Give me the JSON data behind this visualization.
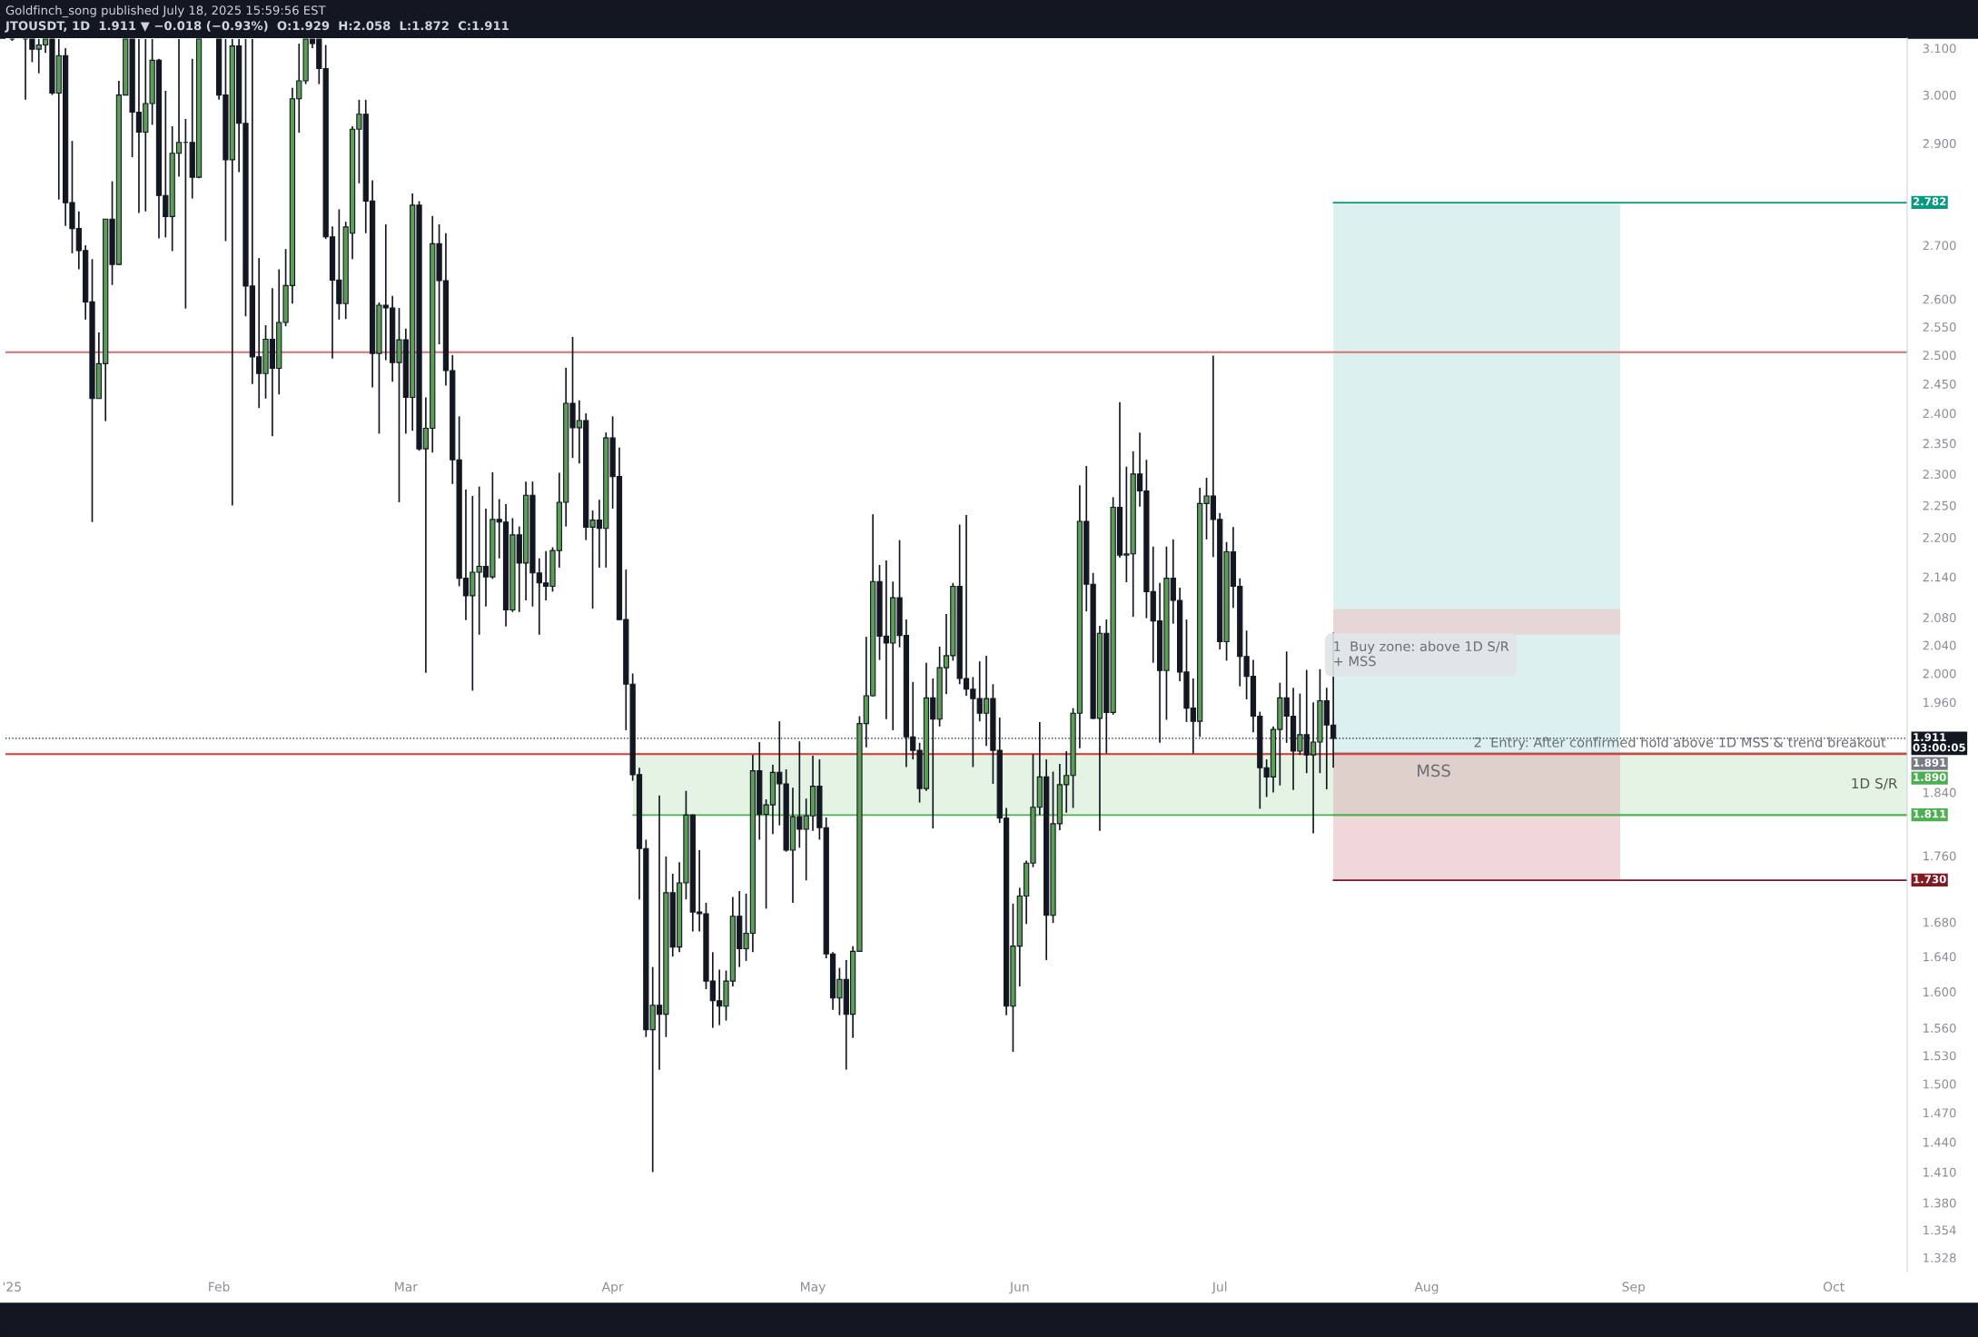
{
  "chart_data": {
    "type": "candlestick",
    "title": "JTOUSDT, 1D  1.911 ▼ −0.018 (−0.93%)  O:1.929  H:2.058  L:1.872  C:1.911",
    "subtitle": "Goldfinch_song published July 18, 2025 15:59:56 EST",
    "x": [
      "2025-01-01",
      "2025-01-03",
      "2025-01-04",
      "2025-01-05",
      "2025-01-06",
      "2025-01-07",
      "2025-01-08",
      "2025-01-09",
      "2025-01-10",
      "2025-01-11",
      "2025-01-12",
      "2025-01-13",
      "2025-01-14",
      "2025-01-15",
      "2025-01-16",
      "2025-01-17",
      "2025-01-18",
      "2025-01-19",
      "2025-01-20",
      "2025-01-21",
      "2025-01-22",
      "2025-01-23",
      "2025-01-24",
      "2025-01-25",
      "2025-01-26",
      "2025-01-27",
      "2025-01-28",
      "2025-01-29",
      "2025-02-01",
      "2025-02-02",
      "2025-02-03",
      "2025-02-04",
      "2025-02-05",
      "2025-02-06",
      "2025-02-07",
      "2025-02-08",
      "2025-02-09",
      "2025-02-10",
      "2025-02-11",
      "2025-02-12",
      "2025-02-13",
      "2025-02-14",
      "2025-02-15",
      "2025-02-16",
      "2025-02-17",
      "2025-02-18",
      "2025-02-19",
      "2025-02-20",
      "2025-02-21",
      "2025-02-22",
      "2025-02-23",
      "2025-02-24",
      "2025-02-25",
      "2025-02-26",
      "2025-02-27",
      "2025-02-28",
      "2025-03-01",
      "2025-03-02",
      "2025-03-03",
      "2025-03-04",
      "2025-03-05",
      "2025-03-06",
      "2025-03-07",
      "2025-03-08",
      "2025-03-09",
      "2025-03-10",
      "2025-03-11",
      "2025-03-12",
      "2025-03-13",
      "2025-03-14",
      "2025-03-15",
      "2025-03-16",
      "2025-03-17",
      "2025-03-18",
      "2025-03-19",
      "2025-03-20",
      "2025-03-21",
      "2025-03-22",
      "2025-03-23",
      "2025-03-24",
      "2025-03-25",
      "2025-03-26",
      "2025-03-27",
      "2025-03-28",
      "2025-03-29",
      "2025-03-30",
      "2025-03-31",
      "2025-04-01",
      "2025-04-02",
      "2025-04-03",
      "2025-04-04",
      "2025-04-05",
      "2025-04-06",
      "2025-04-07",
      "2025-04-08",
      "2025-04-09",
      "2025-04-10",
      "2025-04-11",
      "2025-04-12",
      "2025-04-13",
      "2025-04-14",
      "2025-04-15",
      "2025-04-16",
      "2025-04-17",
      "2025-04-18",
      "2025-04-19",
      "2025-04-20",
      "2025-04-21",
      "2025-04-22",
      "2025-04-23",
      "2025-04-24",
      "2025-04-25",
      "2025-04-26",
      "2025-04-27",
      "2025-04-28",
      "2025-04-29",
      "2025-04-30",
      "2025-05-01",
      "2025-05-02",
      "2025-05-03",
      "2025-05-04",
      "2025-05-05",
      "2025-05-06",
      "2025-05-07",
      "2025-05-08",
      "2025-05-09",
      "2025-05-10",
      "2025-05-11",
      "2025-05-12",
      "2025-05-13",
      "2025-05-14",
      "2025-05-15",
      "2025-05-16",
      "2025-05-17",
      "2025-05-18",
      "2025-05-19",
      "2025-05-20",
      "2025-05-21",
      "2025-05-22",
      "2025-05-23",
      "2025-05-24",
      "2025-05-25",
      "2025-05-26",
      "2025-05-27",
      "2025-05-28",
      "2025-05-29",
      "2025-05-30",
      "2025-05-31",
      "2025-06-01",
      "2025-06-02",
      "2025-06-03",
      "2025-06-04",
      "2025-06-05",
      "2025-06-06",
      "2025-06-07",
      "2025-06-08",
      "2025-06-09",
      "2025-06-10",
      "2025-06-11",
      "2025-06-12",
      "2025-06-13",
      "2025-06-14",
      "2025-06-15",
      "2025-06-16",
      "2025-06-17",
      "2025-06-18",
      "2025-06-19",
      "2025-06-20",
      "2025-06-21",
      "2025-06-22",
      "2025-06-23",
      "2025-06-24",
      "2025-06-25",
      "2025-06-26",
      "2025-06-27",
      "2025-06-28",
      "2025-06-29",
      "2025-06-30",
      "2025-07-01",
      "2025-07-02",
      "2025-07-03",
      "2025-07-04",
      "2025-07-05",
      "2025-07-06",
      "2025-07-07",
      "2025-07-08",
      "2025-07-09",
      "2025-07-10",
      "2025-07-11",
      "2025-07-12",
      "2025-07-13",
      "2025-07-14",
      "2025-07-15",
      "2025-07-16",
      "2025-07-17",
      "2025-07-18"
    ],
    "ohlc": [
      [
        3.12,
        3.12,
        3.116,
        3.12
      ],
      [
        3.12,
        3.12,
        2.99,
        3.12
      ],
      [
        3.12,
        3.12,
        3.07,
        3.098
      ],
      [
        3.098,
        3.12,
        3.046,
        3.107
      ],
      [
        3.107,
        3.12,
        3.09,
        3.12
      ],
      [
        3.12,
        3.12,
        3.0,
        3.004
      ],
      [
        3.004,
        3.12,
        2.788,
        3.084
      ],
      [
        3.084,
        3.1,
        2.737,
        2.782
      ],
      [
        2.782,
        2.905,
        2.685,
        2.732
      ],
      [
        2.732,
        2.765,
        2.655,
        2.69
      ],
      [
        2.69,
        2.7,
        2.563,
        2.595
      ],
      [
        2.595,
        2.674,
        2.224,
        2.425
      ],
      [
        2.425,
        2.54,
        2.425,
        2.485
      ],
      [
        2.485,
        2.75,
        2.387,
        2.75
      ],
      [
        2.75,
        2.824,
        2.626,
        2.664
      ],
      [
        2.664,
        3.03,
        2.664,
        3.0
      ],
      [
        3.0,
        3.12,
        3.0,
        3.12
      ],
      [
        3.12,
        3.12,
        2.872,
        2.964
      ],
      [
        2.964,
        3.12,
        2.762,
        2.923
      ],
      [
        2.923,
        3.12,
        2.765,
        2.982
      ],
      [
        2.982,
        3.12,
        2.938,
        3.074
      ],
      [
        3.074,
        3.077,
        2.713,
        2.796
      ],
      [
        2.796,
        3.009,
        2.715,
        2.755
      ],
      [
        2.755,
        2.935,
        2.689,
        2.88
      ],
      [
        2.88,
        3.12,
        2.833,
        2.902
      ],
      [
        2.902,
        2.95,
        2.583,
        2.902
      ],
      [
        2.902,
        3.077,
        2.79,
        2.832
      ],
      [
        2.832,
        3.12,
        2.83,
        3.12
      ],
      [
        3.12,
        3.12,
        2.99,
        3.0
      ],
      [
        3.0,
        3.12,
        2.708,
        2.867
      ],
      [
        2.867,
        3.12,
        2.25,
        3.105
      ],
      [
        3.105,
        3.12,
        2.842,
        2.941
      ],
      [
        2.941,
        3.12,
        2.569,
        2.624
      ],
      [
        2.624,
        3.12,
        2.45,
        2.497
      ],
      [
        2.497,
        2.676,
        2.409,
        2.468
      ],
      [
        2.468,
        2.553,
        2.425,
        2.528
      ],
      [
        2.528,
        2.62,
        2.362,
        2.477
      ],
      [
        2.477,
        2.655,
        2.432,
        2.558
      ],
      [
        2.558,
        2.693,
        2.551,
        2.625
      ],
      [
        2.625,
        3.015,
        2.592,
        2.992
      ],
      [
        2.992,
        3.11,
        2.922,
        3.03
      ],
      [
        3.03,
        3.12,
        3.023,
        3.12
      ],
      [
        3.12,
        3.12,
        3.1,
        3.11
      ],
      [
        3.12,
        3.12,
        3.023,
        3.056
      ],
      [
        3.056,
        3.107,
        2.712,
        2.716
      ],
      [
        2.716,
        2.736,
        2.494,
        2.635
      ],
      [
        2.635,
        2.769,
        2.563,
        2.592
      ],
      [
        2.592,
        2.745,
        2.564,
        2.735
      ],
      [
        2.723,
        2.935,
        2.674,
        2.929
      ],
      [
        2.929,
        2.99,
        2.82,
        2.96
      ],
      [
        2.96,
        2.99,
        2.723,
        2.785
      ],
      [
        2.785,
        2.826,
        2.444,
        2.503
      ],
      [
        2.503,
        2.594,
        2.366,
        2.589
      ],
      [
        2.589,
        2.74,
        2.491,
        2.584
      ],
      [
        2.584,
        2.606,
        2.454,
        2.487
      ],
      [
        2.487,
        2.584,
        2.255,
        2.527
      ],
      [
        2.527,
        2.547,
        2.366,
        2.427
      ],
      [
        2.427,
        2.8,
        2.371,
        2.777
      ],
      [
        2.777,
        2.785,
        2.338,
        2.341
      ],
      [
        2.341,
        2.427,
        2.001,
        2.375
      ],
      [
        2.375,
        2.756,
        2.335,
        2.703
      ],
      [
        2.703,
        2.74,
        2.519,
        2.634
      ],
      [
        2.634,
        2.723,
        2.447,
        2.473
      ],
      [
        2.473,
        2.5,
        2.284,
        2.323
      ],
      [
        2.323,
        2.395,
        2.126,
        2.138
      ],
      [
        2.138,
        2.275,
        2.076,
        2.112
      ],
      [
        2.112,
        2.265,
        1.976,
        2.147
      ],
      [
        2.147,
        2.28,
        2.055,
        2.156
      ],
      [
        2.156,
        2.245,
        2.096,
        2.14
      ],
      [
        2.14,
        2.303,
        2.137,
        2.228
      ],
      [
        2.228,
        2.26,
        2.168,
        2.224
      ],
      [
        2.224,
        2.252,
        2.067,
        2.091
      ],
      [
        2.091,
        2.23,
        2.088,
        2.204
      ],
      [
        2.204,
        2.217,
        2.088,
        2.161
      ],
      [
        2.161,
        2.288,
        2.105,
        2.266
      ],
      [
        2.266,
        2.288,
        2.096,
        2.146
      ],
      [
        2.146,
        2.168,
        2.055,
        2.131
      ],
      [
        2.131,
        2.179,
        2.105,
        2.126
      ],
      [
        2.126,
        2.185,
        2.118,
        2.18
      ],
      [
        2.18,
        2.302,
        2.154,
        2.255
      ],
      [
        2.255,
        2.478,
        2.217,
        2.417
      ],
      [
        2.417,
        2.532,
        2.326,
        2.376
      ],
      [
        2.376,
        2.422,
        2.317,
        2.388
      ],
      [
        2.388,
        2.4,
        2.196,
        2.216
      ],
      [
        2.216,
        2.242,
        2.093,
        2.227
      ],
      [
        2.227,
        2.259,
        2.154,
        2.214
      ],
      [
        2.214,
        2.368,
        2.154,
        2.359
      ],
      [
        2.359,
        2.395,
        2.245,
        2.296
      ],
      [
        2.296,
        2.343,
        2.076,
        2.077
      ],
      [
        2.077,
        2.151,
        1.922,
        1.985
      ],
      [
        1.985,
        2.0,
        1.855,
        1.863
      ],
      [
        1.863,
        1.872,
        1.707,
        1.769
      ],
      [
        1.769,
        1.78,
        1.55,
        1.558
      ],
      [
        1.558,
        1.628,
        1.41,
        1.585
      ],
      [
        1.585,
        1.836,
        1.515,
        1.575
      ],
      [
        1.575,
        1.759,
        1.55,
        1.715
      ],
      [
        1.715,
        1.738,
        1.64,
        1.651
      ],
      [
        1.651,
        1.752,
        1.645,
        1.727
      ],
      [
        1.727,
        1.842,
        1.707,
        1.811
      ],
      [
        1.811,
        1.812,
        1.669,
        1.692
      ],
      [
        1.692,
        1.767,
        1.669,
        1.69
      ],
      [
        1.69,
        1.703,
        1.603,
        1.612
      ],
      [
        1.612,
        1.645,
        1.56,
        1.59
      ],
      [
        1.59,
        1.625,
        1.563,
        1.584
      ],
      [
        1.584,
        1.624,
        1.568,
        1.612
      ],
      [
        1.612,
        1.71,
        1.606,
        1.687
      ],
      [
        1.687,
        1.717,
        1.628,
        1.649
      ],
      [
        1.649,
        1.714,
        1.635,
        1.667
      ],
      [
        1.667,
        1.889,
        1.645,
        1.868
      ],
      [
        1.868,
        1.906,
        1.78,
        1.812
      ],
      [
        1.812,
        1.831,
        1.696,
        1.824
      ],
      [
        1.824,
        1.876,
        1.787,
        1.866
      ],
      [
        1.866,
        1.934,
        1.798,
        1.851
      ],
      [
        1.851,
        1.87,
        1.765,
        1.767
      ],
      [
        1.767,
        1.846,
        1.703,
        1.809
      ],
      [
        1.809,
        1.907,
        1.77,
        1.793
      ],
      [
        1.793,
        1.832,
        1.73,
        1.81
      ],
      [
        1.81,
        1.888,
        1.791,
        1.848
      ],
      [
        1.848,
        1.883,
        1.78,
        1.795
      ],
      [
        1.795,
        1.808,
        1.638,
        1.643
      ],
      [
        1.643,
        1.645,
        1.58,
        1.593
      ],
      [
        1.593,
        1.627,
        1.574,
        1.614
      ],
      [
        1.614,
        1.636,
        1.515,
        1.575
      ],
      [
        1.575,
        1.652,
        1.549,
        1.646
      ],
      [
        1.646,
        1.941,
        1.646,
        1.931
      ],
      [
        1.931,
        2.052,
        1.899,
        1.969
      ],
      [
        1.969,
        2.236,
        1.968,
        2.133
      ],
      [
        2.133,
        2.158,
        2.019,
        2.053
      ],
      [
        2.053,
        2.165,
        1.937,
        2.043
      ],
      [
        2.043,
        2.133,
        1.922,
        2.109
      ],
      [
        2.109,
        2.196,
        2.037,
        2.054
      ],
      [
        2.054,
        2.077,
        1.873,
        1.913
      ],
      [
        1.913,
        1.988,
        1.883,
        1.895
      ],
      [
        1.895,
        1.905,
        1.827,
        1.845
      ],
      [
        1.845,
        2.015,
        1.842,
        1.966
      ],
      [
        1.966,
        1.993,
        1.794,
        1.937
      ],
      [
        1.937,
        2.038,
        1.927,
        2.008
      ],
      [
        2.008,
        2.085,
        1.971,
        2.025
      ],
      [
        2.025,
        2.131,
        2.018,
        2.126
      ],
      [
        2.126,
        2.22,
        1.985,
        1.993
      ],
      [
        1.993,
        2.235,
        1.969,
        1.978
      ],
      [
        1.978,
        1.995,
        1.873,
        1.965
      ],
      [
        1.965,
        2.017,
        1.934,
        1.945
      ],
      [
        1.945,
        2.025,
        1.901,
        1.965
      ],
      [
        1.965,
        1.985,
        1.851,
        1.895
      ],
      [
        1.895,
        1.939,
        1.801,
        1.807
      ],
      [
        1.807,
        1.82,
        1.574,
        1.584
      ],
      [
        1.584,
        1.702,
        1.534,
        1.652
      ],
      [
        1.652,
        1.721,
        1.606,
        1.711
      ],
      [
        1.711,
        1.754,
        1.678,
        1.751
      ],
      [
        1.751,
        1.89,
        1.746,
        1.821
      ],
      [
        1.821,
        1.933,
        1.811,
        1.86
      ],
      [
        1.86,
        1.883,
        1.636,
        1.688
      ],
      [
        1.688,
        1.867,
        1.679,
        1.8
      ],
      [
        1.8,
        1.877,
        1.792,
        1.85
      ],
      [
        1.85,
        1.894,
        1.814,
        1.862
      ],
      [
        1.862,
        1.952,
        1.82,
        1.945
      ],
      [
        1.945,
        2.282,
        1.898,
        2.225
      ],
      [
        2.225,
        2.313,
        2.089,
        2.129
      ],
      [
        2.129,
        2.146,
        1.937,
        1.938
      ],
      [
        1.938,
        2.068,
        1.791,
        2.057
      ],
      [
        2.057,
        2.077,
        1.891,
        1.946
      ],
      [
        1.946,
        2.263,
        1.943,
        2.247
      ],
      [
        2.247,
        2.419,
        2.169,
        2.173
      ],
      [
        2.173,
        2.312,
        2.132,
        2.175
      ],
      [
        2.175,
        2.337,
        2.081,
        2.3
      ],
      [
        2.3,
        2.368,
        2.248,
        2.273
      ],
      [
        2.273,
        2.323,
        2.079,
        2.118
      ],
      [
        2.118,
        2.186,
        2.015,
        2.075
      ],
      [
        2.075,
        2.131,
        1.905,
        2.004
      ],
      [
        2.004,
        2.186,
        1.936,
        2.138
      ],
      [
        2.138,
        2.197,
        2.071,
        2.105
      ],
      [
        2.105,
        2.124,
        1.989,
        2.002
      ],
      [
        2.002,
        2.077,
        1.933,
        1.952
      ],
      [
        1.952,
        1.993,
        1.891,
        1.934
      ],
      [
        1.934,
        2.278,
        1.913,
        2.253
      ],
      [
        2.253,
        2.294,
        2.197,
        2.265
      ],
      [
        2.265,
        2.499,
        2.17,
        2.228
      ],
      [
        2.228,
        2.238,
        2.034,
        2.045
      ],
      [
        2.045,
        2.193,
        2.018,
        2.178
      ],
      [
        2.178,
        2.216,
        2.094,
        2.126
      ],
      [
        2.126,
        2.138,
        1.982,
        2.024
      ],
      [
        2.024,
        2.061,
        1.964,
        1.996
      ],
      [
        1.996,
        2.019,
        1.919,
        1.941
      ],
      [
        1.941,
        1.947,
        1.819,
        1.872
      ],
      [
        1.872,
        1.883,
        1.834,
        1.86
      ],
      [
        1.86,
        1.927,
        1.84,
        1.923
      ],
      [
        1.923,
        1.987,
        1.849,
        1.966
      ],
      [
        1.966,
        2.031,
        1.905,
        1.941
      ],
      [
        1.941,
        1.98,
        1.843,
        1.894
      ],
      [
        1.894,
        1.972,
        1.889,
        1.916
      ],
      [
        1.916,
        2.005,
        1.865,
        1.889
      ],
      [
        1.889,
        1.96,
        1.788,
        1.906
      ],
      [
        1.906,
        2.006,
        1.865,
        1.962
      ],
      [
        1.962,
        1.98,
        1.844,
        1.929
      ],
      [
        1.929,
        2.058,
        1.872,
        1.911
      ]
    ],
    "log": true,
    "xlim": [
      "2024-12-31",
      "2025-10-12"
    ],
    "xticks": [
      {
        "value": "2025-01-01",
        "label": "'25"
      },
      {
        "value": "2025-02-01",
        "label": "Feb"
      },
      {
        "value": "2025-03-01",
        "label": "Mar"
      },
      {
        "value": "2025-04-01",
        "label": "Apr"
      },
      {
        "value": "2025-05-01",
        "label": "May"
      },
      {
        "value": "2025-06-01",
        "label": "Jun"
      },
      {
        "value": "2025-07-01",
        "label": "Jul"
      },
      {
        "value": "2025-08-01",
        "label": "Aug"
      },
      {
        "value": "2025-09-01",
        "label": "Sep"
      },
      {
        "value": "2025-10-01",
        "label": "Oct"
      }
    ],
    "ylim": [
      1.315,
      3.122
    ],
    "yticks": [
      {
        "value": 3.1,
        "label": "3.100"
      },
      {
        "value": 3.0,
        "label": "3.000"
      },
      {
        "value": 2.9,
        "label": "2.900"
      },
      {
        "value": 2.7,
        "label": "2.700"
      },
      {
        "value": 2.6,
        "label": "2.600"
      },
      {
        "value": 2.55,
        "label": "2.550"
      },
      {
        "value": 2.5,
        "label": "2.500"
      },
      {
        "value": 2.45,
        "label": "2.450"
      },
      {
        "value": 2.4,
        "label": "2.400"
      },
      {
        "value": 2.35,
        "label": "2.350"
      },
      {
        "value": 2.3,
        "label": "2.300"
      },
      {
        "value": 2.25,
        "label": "2.250"
      },
      {
        "value": 2.2,
        "label": "2.200"
      },
      {
        "value": 2.14,
        "label": "2.140"
      },
      {
        "value": 2.08,
        "label": "2.080"
      },
      {
        "value": 2.04,
        "label": "2.040"
      },
      {
        "value": 2.0,
        "label": "2.000"
      },
      {
        "value": 1.96,
        "label": "1.960"
      },
      {
        "value": 1.84,
        "label": "1.840"
      },
      {
        "value": 1.76,
        "label": "1.760"
      },
      {
        "value": 1.68,
        "label": "1.680"
      },
      {
        "value": 1.64,
        "label": "1.640"
      },
      {
        "value": 1.6,
        "label": "1.600"
      },
      {
        "value": 1.56,
        "label": "1.560"
      },
      {
        "value": 1.53,
        "label": "1.530"
      },
      {
        "value": 1.5,
        "label": "1.500"
      },
      {
        "value": 1.47,
        "label": "1.470"
      },
      {
        "value": 1.44,
        "label": "1.440"
      },
      {
        "value": 1.41,
        "label": "1.410"
      },
      {
        "value": 1.38,
        "label": "1.380"
      },
      {
        "value": 1.354,
        "label": "1.354"
      },
      {
        "value": 1.328,
        "label": "1.328"
      }
    ],
    "grid": false,
    "bands": [
      {
        "axis": "y",
        "from": 1.811,
        "to": 1.89,
        "label": "1D S/R",
        "color": "#a5d6a7"
      },
      {
        "axis": "y",
        "from": 1.891,
        "to": 2.782,
        "color": "#b2dfdb"
      },
      {
        "axis": "y",
        "from": 1.73,
        "to": 1.891,
        "color": "#dba6ac"
      },
      {
        "axis": "y",
        "from": 2.055,
        "to": 2.092,
        "color": "#f2b8b8"
      }
    ],
    "ref_lines": [
      {
        "axis": "y",
        "value": 2.782,
        "label": "2.782",
        "color": "#089981"
      },
      {
        "axis": "y",
        "value": 2.505,
        "color": "#d9716e",
        "line_style": "solid"
      },
      {
        "axis": "y",
        "value": 1.911,
        "label": "1.911\n03:00:05",
        "color": "#131722",
        "line_style": "dotted"
      },
      {
        "axis": "y",
        "value": 1.891,
        "label": "1.891",
        "color": "#787b86"
      },
      {
        "axis": "y",
        "value": 1.89,
        "label": "1.890",
        "color": "#4caf50"
      },
      {
        "axis": "y",
        "value": 1.89,
        "color": "#e53935",
        "line_style": "solid"
      },
      {
        "axis": "y",
        "value": 1.811,
        "label": "1.811",
        "color": "#4caf50"
      },
      {
        "axis": "y",
        "value": 1.73,
        "label": "1.730",
        "color": "#801922"
      }
    ],
    "annotations": [
      "1  Buy zone: above 1D S/R\n+ MSS",
      "2  Entry: After confirmed hold above 1D MSS & trend breakout",
      "MSS"
    ]
  }
}
